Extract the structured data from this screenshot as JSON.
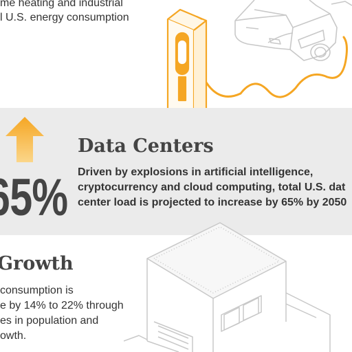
{
  "top_text": {
    "line1": "me heating and industrial",
    "line2": "l U.S. energy consumption"
  },
  "data_centers": {
    "title": "Data Centers",
    "stat": "65%",
    "body_lines": [
      "Driven by explosions in artificial intelligence,",
      "cryptocurrency and cloud computing, total U.S. dat",
      "center load is projected to increase by 65% by 2050"
    ]
  },
  "growth": {
    "title": "Growth",
    "body_lines": [
      "consumption is",
      "e by 14% to 22% through",
      "es in population and",
      "owth."
    ]
  },
  "colors": {
    "accent_orange": "#f5a623",
    "band_gray": "#ebebeb",
    "text_dark": "#333333",
    "line_art_gray": "#c8c8c8"
  }
}
